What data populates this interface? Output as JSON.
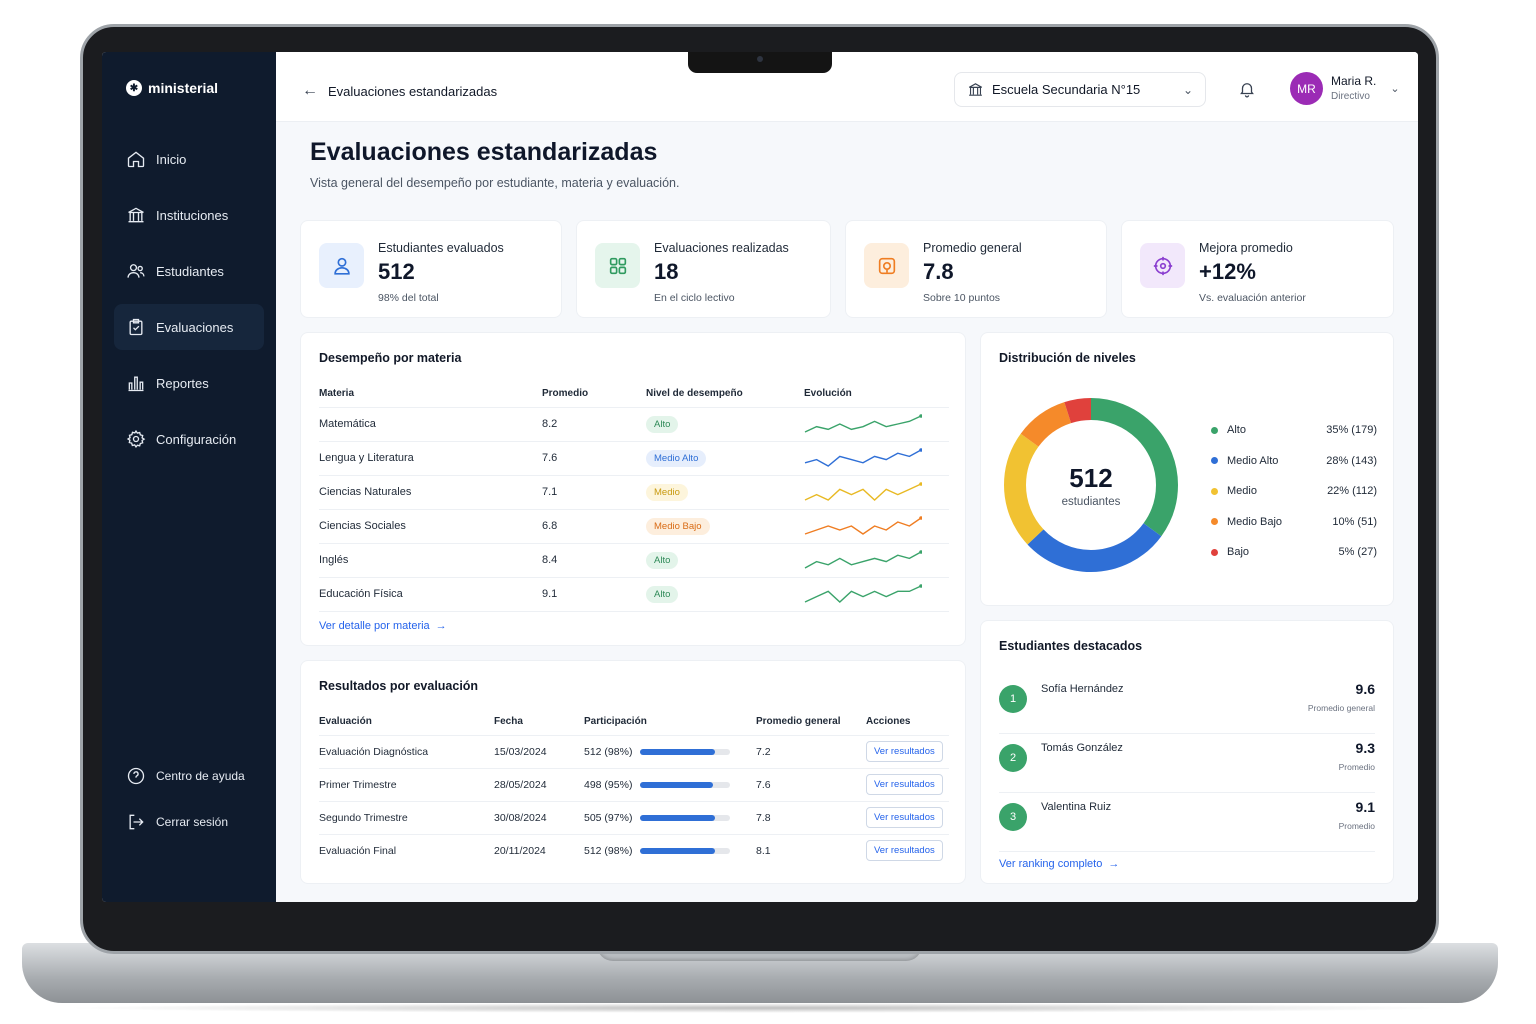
{
  "brand": {
    "name": "ministerial"
  },
  "sidebar": {
    "items": [
      {
        "label": "Inicio",
        "icon": "home-icon"
      },
      {
        "label": "Instituciones",
        "icon": "institution-icon"
      },
      {
        "label": "Estudiantes",
        "icon": "users-icon"
      },
      {
        "label": "Evaluaciones",
        "icon": "clipboard-check-icon",
        "active": true
      },
      {
        "label": "Reportes",
        "icon": "bar-chart-icon"
      },
      {
        "label": "Configuración",
        "icon": "gear-icon"
      }
    ],
    "bottom": [
      {
        "label": "Centro de ayuda",
        "icon": "help-icon"
      },
      {
        "label": "Cerrar sesión",
        "icon": "logout-icon"
      }
    ]
  },
  "header": {
    "breadcrumb": "Evaluaciones estandarizadas",
    "school": "Escuela Secundaria N°15",
    "user": {
      "initials": "MR",
      "name": "Maria R.",
      "role": "Directivo"
    }
  },
  "page": {
    "title": "Evaluaciones estandarizadas",
    "subtitle": "Vista general del desempeño por estudiante, materia y evaluación."
  },
  "kpis": [
    {
      "label": "Estudiantes evaluados",
      "value": "512",
      "note": "98% del total",
      "icon": "user-icon",
      "color": "#2f6fd6",
      "bg": "#e8f0fd"
    },
    {
      "label": "Evaluaciones realizadas",
      "value": "18",
      "note": "En el ciclo lectivo",
      "icon": "grid-icon",
      "color": "#2f9a5f",
      "bg": "#e5f5ec"
    },
    {
      "label": "Promedio general",
      "value": "7.8",
      "note": "Sobre 10 puntos",
      "icon": "target-box-icon",
      "color": "#ef7d22",
      "bg": "#fdeedd"
    },
    {
      "label": "Mejora promedio",
      "value": "+12%",
      "note": "Vs. evaluación anterior",
      "icon": "crosshair-icon",
      "color": "#8b3fd0",
      "bg": "#f2e8fb"
    }
  ],
  "subjects": {
    "title": "Desempeño por materia",
    "headers": [
      "Materia",
      "Promedio",
      "Nivel de desempeño",
      "Evolución"
    ],
    "rows": [
      {
        "name": "Matemática",
        "avg": "8.2",
        "level": "Alto",
        "color": "#3aa36a",
        "pill_bg": "#e3f4ea",
        "pill_fg": "#2f8a58",
        "trend": [
          3,
          5,
          4,
          6,
          4,
          5,
          7,
          5,
          6,
          7,
          9
        ]
      },
      {
        "name": "Lengua y Literatura",
        "avg": "7.6",
        "level": "Medio Alto",
        "color": "#2f6fd6",
        "pill_bg": "#e6eefc",
        "pill_fg": "#2f6fd6",
        "trend": [
          4,
          5,
          3,
          6,
          5,
          4,
          6,
          5,
          7,
          6,
          8
        ]
      },
      {
        "name": "Ciencias Naturales",
        "avg": "7.1",
        "level": "Medio",
        "color": "#e8b923",
        "pill_bg": "#fdf5dc",
        "pill_fg": "#c89a10",
        "trend": [
          4,
          5,
          4,
          6,
          5,
          6,
          4,
          6,
          5,
          6,
          7
        ]
      },
      {
        "name": "Ciencias Sociales",
        "avg": "6.8",
        "level": "Medio Bajo",
        "color": "#ef7d22",
        "pill_bg": "#fdeedd",
        "pill_fg": "#d96b15",
        "trend": [
          3,
          4,
          5,
          4,
          5,
          3,
          5,
          4,
          6,
          5,
          7
        ]
      },
      {
        "name": "Inglés",
        "avg": "8.4",
        "level": "Alto",
        "color": "#3aa36a",
        "pill_bg": "#e3f4ea",
        "pill_fg": "#2f8a58",
        "trend": [
          4,
          6,
          5,
          7,
          5,
          6,
          7,
          6,
          8,
          7,
          9
        ]
      },
      {
        "name": "Educación Física",
        "avg": "9.1",
        "level": "Alto",
        "color": "#3aa36a",
        "pill_bg": "#e3f4ea",
        "pill_fg": "#2f8a58",
        "trend": [
          4,
          5,
          6,
          4,
          6,
          5,
          6,
          5,
          6,
          6,
          7
        ]
      }
    ],
    "link": "Ver detalle por materia"
  },
  "evaluations": {
    "title": "Resultados por evaluación",
    "headers": [
      "Evaluación",
      "Fecha",
      "Participación",
      "Promedio general",
      "Acciones"
    ],
    "rows": [
      {
        "name": "Evaluación Diagnóstica",
        "date": "15/03/2024",
        "participation": "512 (98%)",
        "pct": 98,
        "avg": "7.2",
        "action": "Ver resultados"
      },
      {
        "name": "Primer Trimestre",
        "date": "28/05/2024",
        "participation": "498 (95%)",
        "pct": 95,
        "avg": "7.6",
        "action": "Ver resultados"
      },
      {
        "name": "Segundo Trimestre",
        "date": "30/08/2024",
        "participation": "505 (97%)",
        "pct": 97,
        "avg": "7.8",
        "action": "Ver resultados"
      },
      {
        "name": "Evaluación Final",
        "date": "20/11/2024",
        "participation": "512 (98%)",
        "pct": 98,
        "avg": "8.1",
        "action": "Ver resultados"
      }
    ]
  },
  "distribution": {
    "title": "Distribución de niveles",
    "center_value": "512",
    "center_label": "estudiantes",
    "levels": [
      {
        "name": "Alto",
        "label": "35% (179)",
        "pct": 35,
        "color": "#3aa36a"
      },
      {
        "name": "Medio Alto",
        "label": "28% (143)",
        "pct": 28,
        "color": "#2f6fd6"
      },
      {
        "name": "Medio",
        "label": "22% (112)",
        "pct": 22,
        "color": "#f1c232"
      },
      {
        "name": "Medio Bajo",
        "label": "10% (51)",
        "pct": 10,
        "color": "#f58a2a"
      },
      {
        "name": "Bajo",
        "label": "5% (27)",
        "pct": 5,
        "color": "#e0413c"
      }
    ]
  },
  "top_students": {
    "title": "Estudiantes destacados",
    "rows": [
      {
        "rank": "1",
        "name": "Sofía Hernández",
        "score": "9.6",
        "label": "Promedio general"
      },
      {
        "rank": "2",
        "name": "Tomás González",
        "score": "9.3",
        "label": "Promedio"
      },
      {
        "rank": "3",
        "name": "Valentina Ruiz",
        "score": "9.1",
        "label": "Promedio"
      }
    ],
    "link": "Ver ranking completo"
  }
}
